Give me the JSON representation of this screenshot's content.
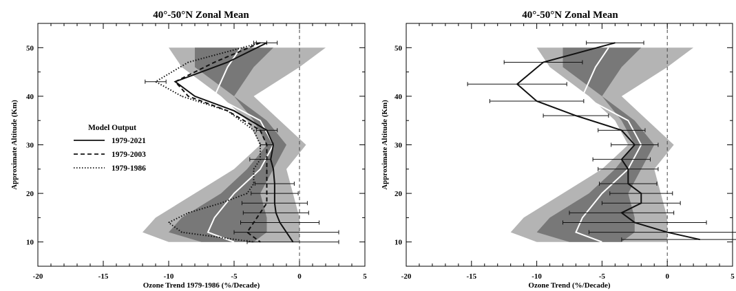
{
  "chart_data": [
    {
      "type": "line",
      "title": "40°-50°N Zonal Mean",
      "xlabel": "Ozone Trend 1979-1986 (%/Decade)",
      "ylabel": "Approximate Altitude (Km)",
      "xlim": [
        -20,
        5
      ],
      "ylim": [
        5,
        55
      ],
      "xticks": [
        -20,
        -15,
        -10,
        -5,
        0,
        5
      ],
      "yticks": [
        10,
        20,
        30,
        40,
        50
      ],
      "zero_line": 0,
      "legend": {
        "title": "Model Output",
        "position": "middle-left",
        "entries": [
          {
            "label": "1979-2021",
            "style": "solid"
          },
          {
            "label": "1979-2003",
            "style": "dashed"
          },
          {
            "label": "1979-1986",
            "style": "dotted"
          }
        ]
      },
      "bands": [
        {
          "name": "outer",
          "color": "#b4b4b4",
          "y": [
            50,
            46,
            40,
            35,
            30,
            25,
            20,
            15,
            12,
            10
          ],
          "left": [
            -10,
            -9,
            -6,
            -4,
            -3,
            -5,
            -8,
            -11,
            -12,
            -10
          ],
          "right": [
            2,
            0,
            -3.5,
            -1.5,
            0.5,
            -1,
            -0.5,
            0,
            0,
            0
          ]
        },
        {
          "name": "inner",
          "color": "#787878",
          "y": [
            50,
            46,
            40,
            35,
            30,
            25,
            20,
            15,
            12,
            10
          ],
          "left": [
            -8,
            -8,
            -5,
            -3.5,
            -2.5,
            -4,
            -6,
            -9,
            -10,
            -7.5
          ],
          "right": [
            -2,
            -3.5,
            -5,
            -2.5,
            -1,
            -2,
            -3,
            -2.5,
            -2.5,
            -3.5
          ]
        },
        {
          "name": "mean",
          "color": "#ffffff",
          "y": [
            50,
            46,
            40,
            35,
            30,
            25,
            20,
            15,
            12,
            10
          ],
          "x": [
            -4.5,
            -5.5,
            -6.5,
            -3,
            -2,
            -3,
            -5,
            -6.5,
            -7,
            -5
          ]
        }
      ],
      "series": [
        {
          "name": "1979-2021",
          "style": "solid",
          "y": [
            51,
            47,
            43,
            40,
            37,
            33,
            30,
            27,
            25,
            22,
            20,
            18,
            16,
            14,
            12,
            10
          ],
          "x": [
            -2.5,
            -5.5,
            -9.5,
            -8,
            -5,
            -2.5,
            -2,
            -2.2,
            -2,
            -1.9,
            -1.9,
            -1.9,
            -1.8,
            -1.5,
            -1,
            -0.5
          ],
          "err": [
            0.8,
            0,
            0,
            0,
            0,
            0.8,
            0,
            0,
            0,
            1.5,
            1.8,
            2.5,
            2.5,
            3,
            4,
            3.5
          ]
        },
        {
          "name": "1979-2003",
          "style": "dashed",
          "y": [
            51,
            47,
            43,
            40,
            37,
            33,
            30,
            27,
            25,
            22,
            20,
            18,
            16,
            14,
            12,
            10
          ],
          "x": [
            -3,
            -6.5,
            -9.5,
            -8.5,
            -5.5,
            -3,
            -2.5,
            -2.5,
            -2.5,
            -2.5,
            -2.5,
            -2.5,
            -3,
            -3.5,
            -4,
            -3
          ],
          "err": [
            0.5,
            0,
            0,
            0,
            0,
            0,
            0.5,
            0,
            0,
            0,
            0,
            0,
            0,
            0,
            0,
            0
          ]
        },
        {
          "name": "1979-1986",
          "style": "dotted",
          "y": [
            51,
            47,
            43,
            40,
            37,
            33,
            30,
            27,
            25,
            22,
            20,
            18,
            16,
            14,
            12,
            10
          ],
          "x": [
            -3,
            -8.5,
            -11,
            -9,
            -5.5,
            -3.5,
            -3,
            -3,
            -3.5,
            -3.5,
            -4,
            -6,
            -8.5,
            -10,
            -9,
            -3.5
          ],
          "err": [
            0,
            0,
            0.8,
            0,
            0,
            0,
            0,
            0.8,
            0,
            0,
            0,
            0,
            0,
            0,
            0,
            0
          ]
        }
      ]
    },
    {
      "type": "line",
      "title": "40°-50°N Zonal Mean",
      "xlabel": "Ozone Trend (%/Decade)",
      "ylabel": "Approximate Altitude (Km)",
      "xlim": [
        -20,
        5
      ],
      "ylim": [
        5,
        55
      ],
      "xticks": [
        -20,
        -15,
        -10,
        -5,
        0,
        5
      ],
      "yticks": [
        10,
        20,
        30,
        40,
        50
      ],
      "zero_line": 0,
      "bands": [
        {
          "name": "outer",
          "color": "#b4b4b4",
          "y": [
            50,
            46,
            40,
            35,
            30,
            25,
            20,
            15,
            12,
            10
          ],
          "left": [
            -10,
            -9,
            -6,
            -4,
            -3,
            -5,
            -8,
            -11,
            -12,
            -10
          ],
          "right": [
            2,
            0,
            -3.5,
            -1.5,
            0.5,
            -1,
            -0.5,
            0,
            0,
            0
          ]
        },
        {
          "name": "inner",
          "color": "#787878",
          "y": [
            50,
            46,
            40,
            35,
            30,
            25,
            20,
            15,
            12,
            10
          ],
          "left": [
            -8,
            -8,
            -5,
            -3.5,
            -2.5,
            -4,
            -6,
            -9,
            -10,
            -7.5
          ],
          "right": [
            -2,
            -3.5,
            -5,
            -2.5,
            -1,
            -2,
            -3,
            -2.5,
            -2.5,
            -3.5
          ]
        },
        {
          "name": "mean",
          "color": "#ffffff",
          "y": [
            50,
            46,
            40,
            35,
            30,
            25,
            20,
            15,
            12,
            10
          ],
          "x": [
            -4.5,
            -5.5,
            -6.5,
            -3,
            -2,
            -3,
            -5,
            -6.5,
            -7,
            -5
          ]
        }
      ],
      "series": [
        {
          "style": "solid",
          "y": [
            51,
            47,
            42.5,
            39,
            36,
            33,
            30,
            27,
            25,
            22,
            20,
            18,
            16,
            14,
            12,
            10.5
          ],
          "x": [
            -4,
            -9.5,
            -11.5,
            -10,
            -7,
            -3.5,
            -2.5,
            -3.5,
            -3,
            -3,
            -2,
            -2,
            -3.5,
            -2.5,
            0,
            2.5
          ],
          "err": [
            2.2,
            3,
            3.8,
            3.6,
            2.5,
            1.8,
            1.8,
            2.2,
            2.3,
            2.2,
            2.4,
            3,
            4,
            5.5,
            6,
            6
          ]
        }
      ]
    }
  ]
}
